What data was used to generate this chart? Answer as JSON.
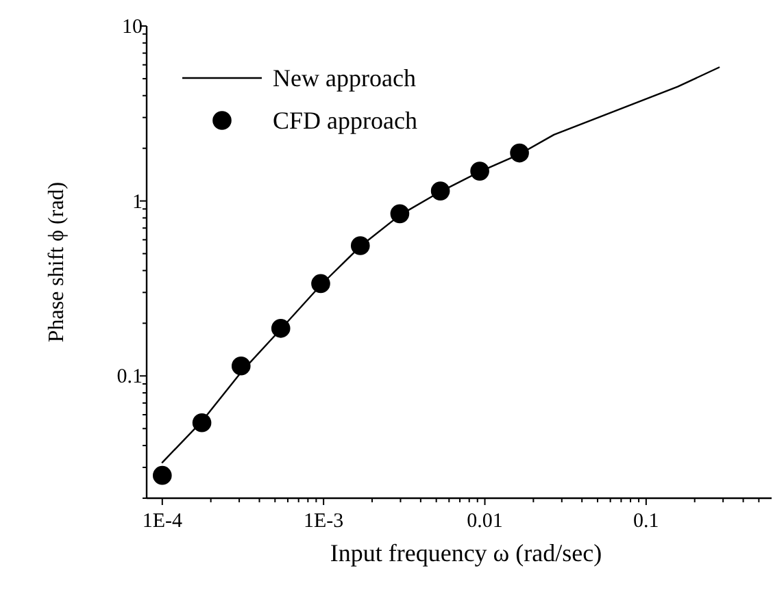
{
  "chart_data": {
    "type": "line",
    "xlabel": "Input frequency ω (rad/sec)",
    "ylabel": "Phase shift ϕ (rad)",
    "log": "xy",
    "grid": false,
    "legend": "top left",
    "xlim": [
      8e-05,
      0.6
    ],
    "ylim": [
      0.02,
      10
    ],
    "xticks": [
      {
        "value": 0.0001,
        "label": "1E-4"
      },
      {
        "value": 0.0002,
        "label": null
      },
      {
        "value": 0.0003,
        "label": null
      },
      {
        "value": 0.0004,
        "label": null
      },
      {
        "value": 0.0005,
        "label": null
      },
      {
        "value": 0.0006,
        "label": null
      },
      {
        "value": 0.0007,
        "label": null
      },
      {
        "value": 0.0008,
        "label": null
      },
      {
        "value": 0.0009,
        "label": null
      },
      {
        "value": 0.001,
        "label": "1E-3"
      },
      {
        "value": 0.002,
        "label": null
      },
      {
        "value": 0.003,
        "label": null
      },
      {
        "value": 0.004,
        "label": null
      },
      {
        "value": 0.005,
        "label": null
      },
      {
        "value": 0.006,
        "label": null
      },
      {
        "value": 0.007,
        "label": null
      },
      {
        "value": 0.008,
        "label": null
      },
      {
        "value": 0.009,
        "label": null
      },
      0.01,
      {
        "value": 0.02,
        "label": null
      },
      {
        "value": 0.03,
        "label": null
      },
      {
        "value": 0.04,
        "label": null
      },
      {
        "value": 0.05,
        "label": null
      },
      {
        "value": 0.06,
        "label": null
      },
      {
        "value": 0.07,
        "label": null
      },
      {
        "value": 0.08,
        "label": null
      },
      {
        "value": 0.09,
        "label": null
      },
      0.1,
      {
        "value": 0.2,
        "label": null
      },
      {
        "value": 0.3,
        "label": null
      },
      {
        "value": 0.4,
        "label": null
      },
      {
        "value": 0.5,
        "label": null
      }
    ],
    "yticks": [
      {
        "value": 0.02,
        "label": null
      },
      {
        "value": 0.03,
        "label": null
      },
      {
        "value": 0.04,
        "label": null
      },
      {
        "value": 0.05,
        "label": null
      },
      {
        "value": 0.06,
        "label": null
      },
      {
        "value": 0.07,
        "label": null
      },
      {
        "value": 0.08,
        "label": null
      },
      {
        "value": 0.09,
        "label": null
      },
      0.1,
      {
        "value": 0.2,
        "label": null
      },
      {
        "value": 0.3,
        "label": null
      },
      {
        "value": 0.4,
        "label": null
      },
      {
        "value": 0.5,
        "label": null
      },
      {
        "value": 0.6,
        "label": null
      },
      {
        "value": 0.7,
        "label": null
      },
      {
        "value": 0.8,
        "label": null
      },
      {
        "value": 0.9,
        "label": null
      },
      1,
      {
        "value": 2,
        "label": null
      },
      {
        "value": 3,
        "label": null
      },
      {
        "value": 4,
        "label": null
      },
      {
        "value": 5,
        "label": null
      },
      {
        "value": 6,
        "label": null
      },
      {
        "value": 7,
        "label": null
      },
      {
        "value": 8,
        "label": null
      },
      {
        "value": 9,
        "label": null
      },
      10
    ],
    "series": [
      {
        "name": "New approach",
        "color": "#000000",
        "marker": "none",
        "line_style": "solid",
        "x": [
          0.0001,
          0.000176,
          0.000308,
          0.000543,
          0.00096,
          0.00169,
          0.00297,
          0.0053,
          0.0093,
          0.0164,
          0.0268,
          0.157,
          0.283
        ],
        "values": [
          0.032,
          0.055,
          0.105,
          0.185,
          0.33,
          0.55,
          0.83,
          1.13,
          1.47,
          1.85,
          2.39,
          4.5,
          5.8
        ]
      },
      {
        "name": "CFD approach",
        "type": "scatter",
        "color": "#000000",
        "marker": "circle",
        "x": [
          0.0001,
          0.000176,
          0.000308,
          0.000543,
          0.00096,
          0.00169,
          0.00297,
          0.0053,
          0.0093,
          0.0164
        ],
        "values": [
          0.027,
          0.054,
          0.114,
          0.187,
          0.337,
          0.555,
          0.845,
          1.14,
          1.48,
          1.88
        ]
      }
    ]
  }
}
